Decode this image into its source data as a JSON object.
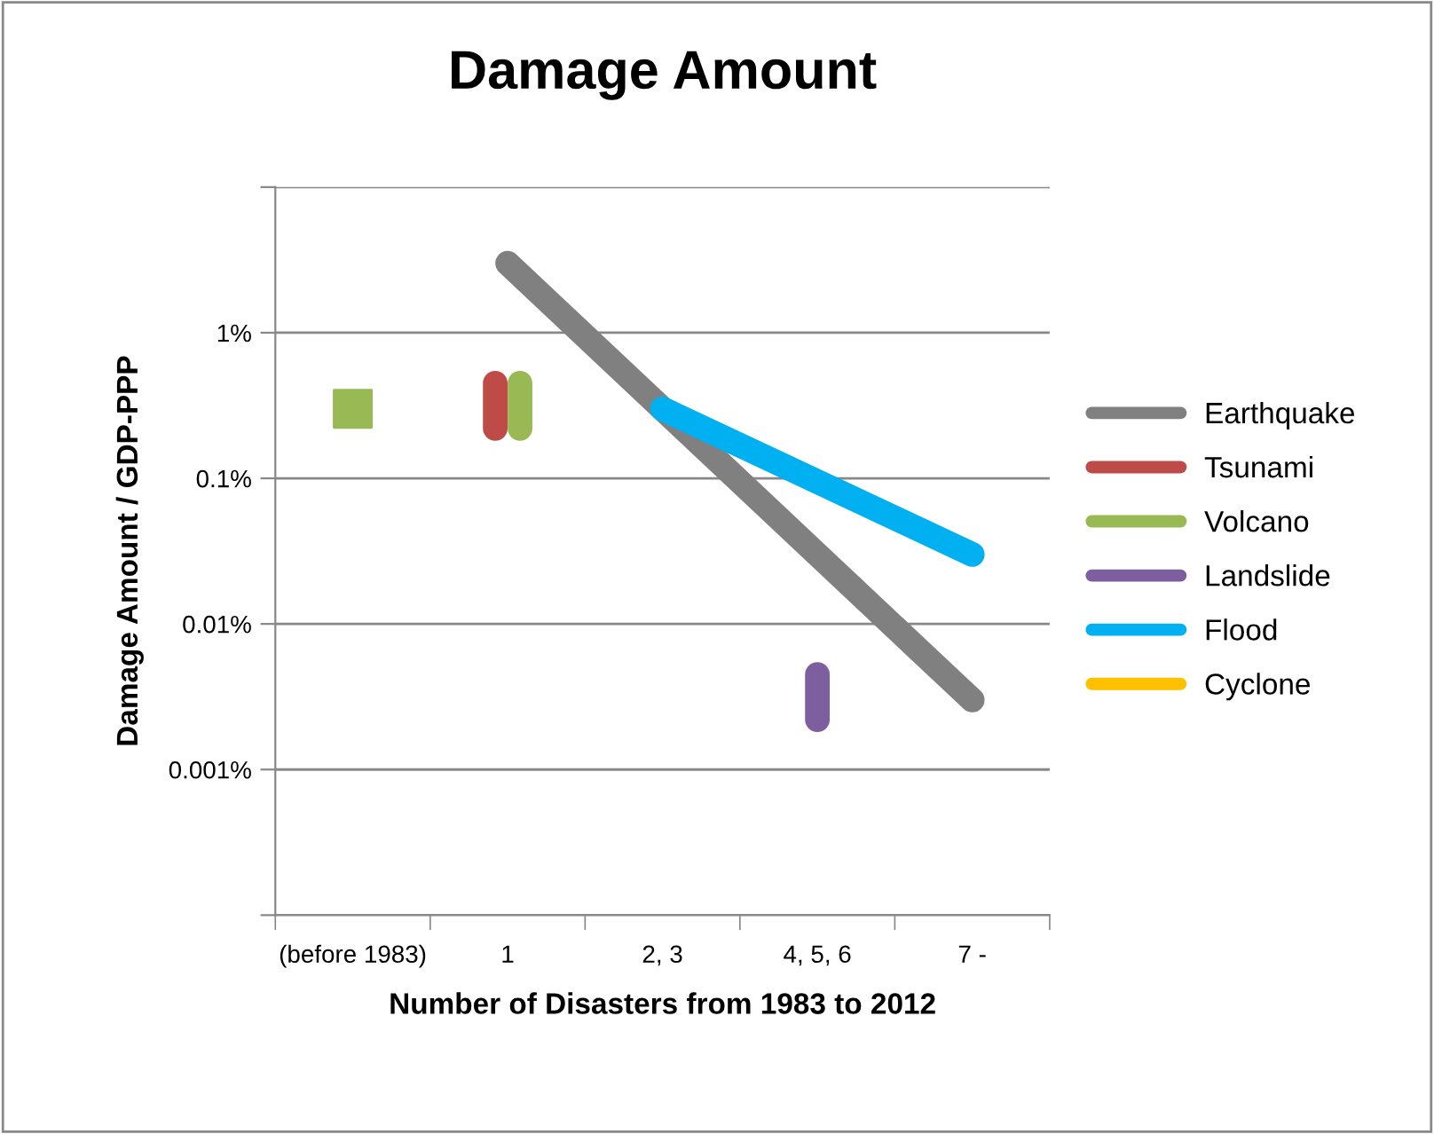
{
  "chart_data": {
    "type": "line",
    "title": "Damage Amount",
    "xlabel": "Number of Disasters from 1983 to 2012",
    "ylabel": "Damage Amount / GDP-PPP",
    "log": "y",
    "grid": "y",
    "legend": "right",
    "line_style": "solid",
    "categories": [
      "(before 1983)",
      "1",
      "2, 3",
      "4, 5, 6",
      "7 -"
    ],
    "ylim": [
      0.0001,
      10
    ],
    "yticks": [
      {
        "value": 0.0001,
        "label": null
      },
      {
        "value": 0.001,
        "label": "0.001%"
      },
      {
        "value": 0.01,
        "label": "0.01%"
      },
      {
        "value": 0.1,
        "label": "0.1%"
      },
      {
        "value": 1,
        "label": "1%"
      },
      {
        "value": 10,
        "label": null
      }
    ],
    "series": [
      {
        "name": "Earthquake",
        "color": "#808080",
        "x": [
          "1",
          "7 -"
        ],
        "values": [
          3,
          0.003
        ]
      },
      {
        "name": "Tsunami",
        "color": "#be4b48",
        "x": [
          "1",
          "1"
        ],
        "values": [
          0.22,
          0.45
        ]
      },
      {
        "name": "Volcano",
        "color": "#98b954",
        "x": [
          "1",
          "1"
        ],
        "values": [
          0.22,
          0.45
        ]
      },
      {
        "name": "Landslide",
        "color": "#7d5fa0",
        "x": [
          "4, 5, 6",
          "4, 5, 6"
        ],
        "values": [
          0.0022,
          0.0045
        ]
      },
      {
        "name": "Flood",
        "color": "#00b0f0",
        "x": [
          "2, 3",
          "7 -"
        ],
        "values": [
          0.3,
          0.03
        ]
      },
      {
        "name": "Cyclone",
        "color": "#ffc000",
        "values": [
          null,
          null,
          null,
          null,
          null
        ]
      },
      {
        "type": "scatter",
        "marker": "square",
        "color": "#98b954",
        "x": [
          "(before 1983)"
        ],
        "values": [
          0.3
        ]
      }
    ]
  }
}
